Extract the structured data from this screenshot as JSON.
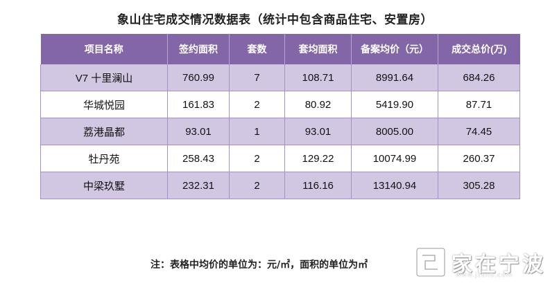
{
  "title": "象山住宅成交情况数据表（统计中包含商品住宅、安置房）",
  "table": {
    "headers": [
      "项目名称",
      "签约面积",
      "套数",
      "套均面积",
      "备案均价（元）",
      "成交总价(万)"
    ],
    "rows": [
      [
        "V7 十里澜山",
        "760.99",
        "7",
        "108.71",
        "8991.64",
        "684.26"
      ],
      [
        "华城悦园",
        "161.83",
        "2",
        "80.92",
        "5419.90",
        "87.71"
      ],
      [
        "荔港晶都",
        "93.01",
        "1",
        "93.01",
        "8005.00",
        "74.45"
      ],
      [
        "牡丹苑",
        "258.43",
        "2",
        "129.22",
        "10074.99",
        "260.37"
      ],
      [
        "中梁玖墅",
        "232.31",
        "2",
        "116.16",
        "13140.94",
        "305.28"
      ]
    ]
  },
  "note": "注：表格中均价的单位为：元/㎡，面积的单位为㎡",
  "watermark": {
    "text": "家在宁波",
    "url": "www.jzsnb.com"
  },
  "colors": {
    "header_bg": "#8366a8",
    "row_alt_bg": "#d2c7e2",
    "row_bg": "#ffffff"
  }
}
